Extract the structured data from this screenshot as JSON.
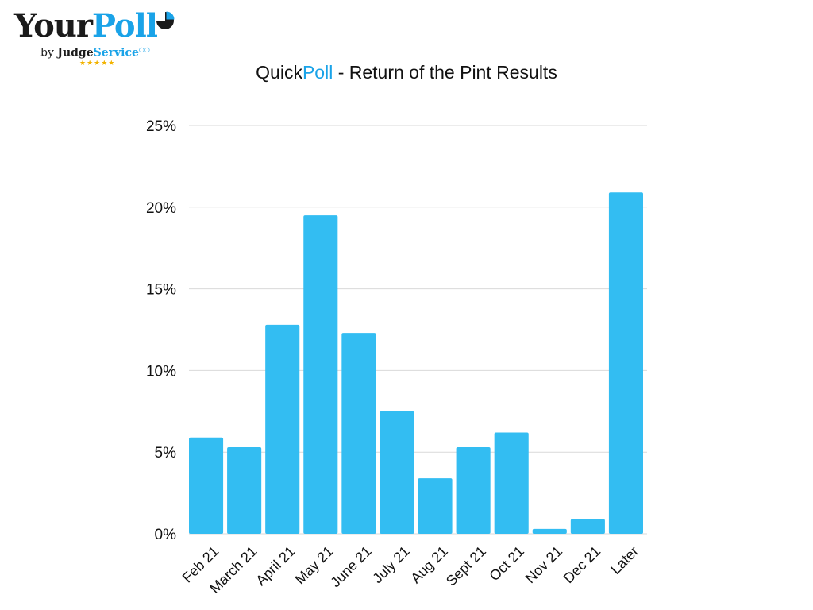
{
  "logo": {
    "brand_part1": "Your",
    "brand_part2": "Poll",
    "by_text": "by",
    "judge_text": "Judge",
    "service_text": "Service",
    "stars": "★★★★★",
    "icon": "pie-chart-icon"
  },
  "title": {
    "part1": "Quick",
    "part2": "Poll",
    "part3": " - Return of the Pint Results"
  },
  "colors": {
    "bar": "#33bdf2",
    "grid": "#d9d9d9",
    "brand_blue": "#1aa3e8"
  },
  "chart_data": {
    "type": "bar",
    "title": "QuickPoll - Return of the Pint Results",
    "xlabel": "",
    "ylabel": "",
    "categories": [
      "Feb 21",
      "March 21",
      "April 21",
      "May 21",
      "June 21",
      "July 21",
      "Aug 21",
      "Sept 21",
      "Oct 21",
      "Nov 21",
      "Dec 21",
      "Later"
    ],
    "values": [
      5.9,
      5.3,
      12.8,
      19.5,
      12.3,
      7.5,
      3.4,
      5.3,
      6.2,
      0.3,
      0.9,
      20.9
    ],
    "unit": "%",
    "ylim": [
      0,
      25
    ],
    "yticks": [
      "0%",
      "5%",
      "10%",
      "15%",
      "20%",
      "25%"
    ],
    "grid": true,
    "legend": "none"
  }
}
